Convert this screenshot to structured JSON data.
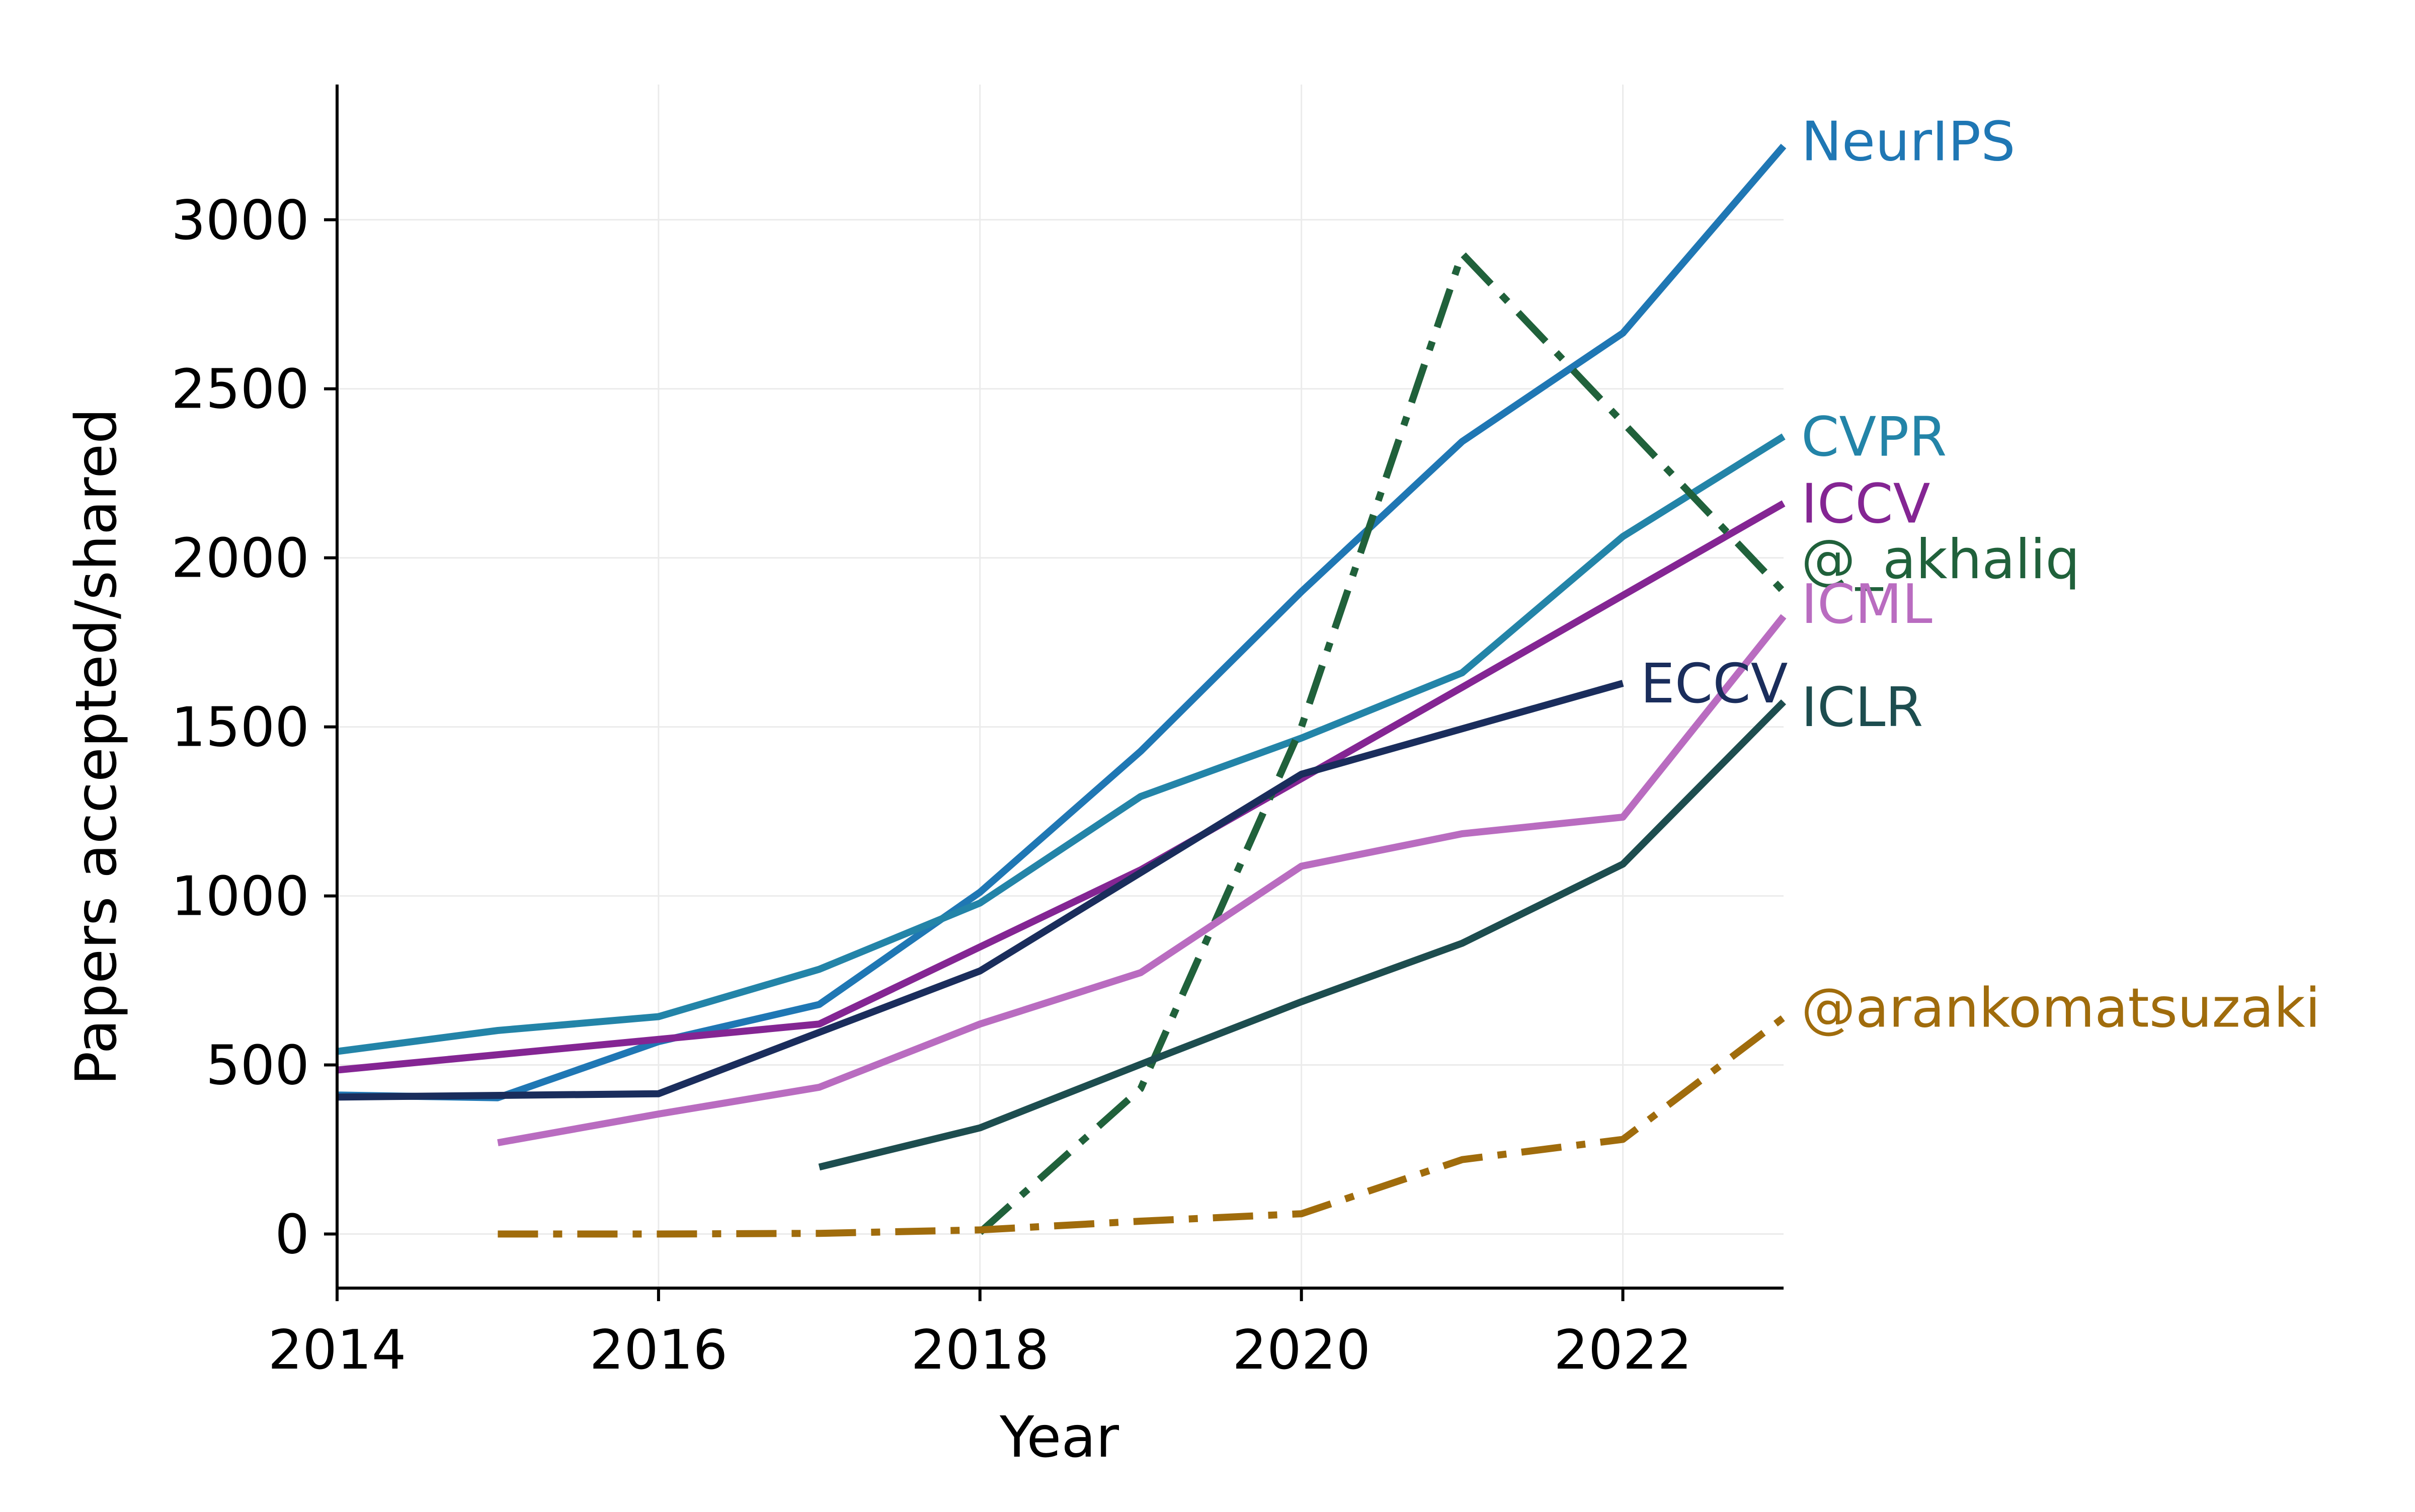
{
  "chart_data": {
    "type": "line",
    "title": "",
    "xlabel": "Year",
    "ylabel": "Papers accepted/shared",
    "xlim": [
      2014,
      2023
    ],
    "ylim": [
      -160,
      3400
    ],
    "xticks": [
      2014,
      2016,
      2018,
      2020,
      2022
    ],
    "yticks": [
      0,
      500,
      1000,
      1500,
      2000,
      2500,
      3000
    ],
    "grid": true,
    "legend": "inline-labels-right",
    "series": [
      {
        "name": "NeurIPS",
        "color": "#1f77b4",
        "style": "solid",
        "x": [
          2014,
          2015,
          2016,
          2017,
          2018,
          2019,
          2020,
          2021,
          2022,
          2023
        ],
        "y": [
          411,
          403,
          569,
          679,
          1011,
          1428,
          1900,
          2344,
          2665,
          3218
        ]
      },
      {
        "name": "CVPR",
        "color": "#2384a8",
        "style": "solid",
        "x": [
          2014,
          2015,
          2016,
          2017,
          2018,
          2019,
          2020,
          2021,
          2022,
          2023
        ],
        "y": [
          540,
          602,
          643,
          783,
          979,
          1294,
          1467,
          1660,
          2063,
          2359
        ]
      },
      {
        "name": "ICCV",
        "color": "#842593",
        "style": "solid",
        "x": [
          2014,
          2017,
          2019,
          2021,
          2023
        ],
        "y": [
          485,
          621,
          1077,
          1617,
          2161
        ]
      },
      {
        "name": "@_akhaliq",
        "color": "#20613b",
        "style": "dashdot",
        "x": [
          2018,
          2019,
          2020,
          2021,
          2022,
          2023
        ],
        "y": [
          5,
          430,
          1500,
          2900,
          2400,
          1900
        ]
      },
      {
        "name": "ICML",
        "color": "#b96cc0",
        "style": "solid",
        "x": [
          2015,
          2016,
          2017,
          2018,
          2019,
          2020,
          2021,
          2022,
          2023
        ],
        "y": [
          270,
          355,
          434,
          621,
          773,
          1088,
          1184,
          1233,
          1827
        ]
      },
      {
        "name": "ECCV",
        "color": "#1a2d5c",
        "style": "solid",
        "x": [
          2014,
          2016,
          2018,
          2020,
          2022
        ],
        "y": [
          405,
          415,
          778,
          1360,
          1629
        ]
      },
      {
        "name": "ICLR",
        "color": "#1d4d4f",
        "style": "solid",
        "x": [
          2017,
          2018,
          2019,
          2020,
          2021,
          2022,
          2023
        ],
        "y": [
          198,
          314,
          502,
          687,
          860,
          1094,
          1574
        ]
      },
      {
        "name": "@arankomatsuzaki",
        "color": "#a06c0c",
        "style": "dashdot",
        "x": [
          2015,
          2016,
          2017,
          2018,
          2019,
          2020,
          2021,
          2022,
          2023
        ],
        "y": [
          0,
          0,
          2,
          12,
          38,
          60,
          220,
          280,
          640
        ]
      }
    ]
  }
}
